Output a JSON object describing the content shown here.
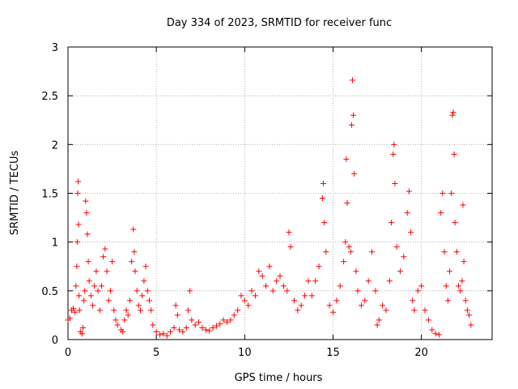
{
  "chart_data": {
    "type": "scatter",
    "title": "Day 334 of 2023, SRMTID for receiver func",
    "xlabel": "GPS time / hours",
    "ylabel": "SRMTID / TECUs",
    "xlim": [
      0,
      24
    ],
    "ylim": [
      0,
      3
    ],
    "xticks": [
      0,
      5,
      10,
      15,
      20
    ],
    "xtick_labels": [
      "0",
      "5",
      "10",
      "15",
      "20"
    ],
    "yticks": [
      0,
      0.5,
      1,
      1.5,
      2,
      2.5,
      3
    ],
    "ytick_labels": [
      "0",
      "0.5",
      "1",
      "1.5",
      "2",
      "2.5",
      "3"
    ],
    "grid": true,
    "marker": "+",
    "color": "#ff0000",
    "series": [
      {
        "name": "SRMTID",
        "points": [
          [
            0.0,
            0.2
          ],
          [
            0.1,
            0.22
          ],
          [
            0.2,
            0.3
          ],
          [
            0.3,
            0.32
          ],
          [
            0.4,
            0.28
          ],
          [
            0.45,
            0.55
          ],
          [
            0.5,
            0.75
          ],
          [
            0.52,
            1.0
          ],
          [
            0.55,
            1.5
          ],
          [
            0.58,
            1.62
          ],
          [
            0.6,
            1.18
          ],
          [
            0.62,
            0.45
          ],
          [
            0.65,
            0.3
          ],
          [
            0.7,
            0.08
          ],
          [
            0.8,
            0.06
          ],
          [
            0.85,
            0.12
          ],
          [
            0.9,
            0.4
          ],
          [
            0.95,
            0.5
          ],
          [
            1.0,
            1.42
          ],
          [
            1.05,
            1.3
          ],
          [
            1.1,
            1.08
          ],
          [
            1.15,
            0.8
          ],
          [
            1.2,
            0.6
          ],
          [
            1.3,
            0.45
          ],
          [
            1.4,
            0.35
          ],
          [
            1.5,
            0.55
          ],
          [
            1.6,
            0.7
          ],
          [
            1.7,
            0.5
          ],
          [
            1.8,
            0.3
          ],
          [
            1.9,
            0.55
          ],
          [
            2.0,
            0.85
          ],
          [
            2.1,
            0.93
          ],
          [
            2.2,
            0.7
          ],
          [
            2.3,
            0.4
          ],
          [
            2.4,
            0.5
          ],
          [
            2.5,
            0.8
          ],
          [
            2.6,
            0.3
          ],
          [
            2.7,
            0.2
          ],
          [
            2.8,
            0.15
          ],
          [
            3.0,
            0.1
          ],
          [
            3.1,
            0.08
          ],
          [
            3.2,
            0.2
          ],
          [
            3.3,
            0.3
          ],
          [
            3.4,
            0.25
          ],
          [
            3.5,
            0.4
          ],
          [
            3.6,
            0.8
          ],
          [
            3.7,
            1.13
          ],
          [
            3.75,
            0.9
          ],
          [
            3.8,
            0.7
          ],
          [
            3.9,
            0.5
          ],
          [
            4.0,
            0.35
          ],
          [
            4.1,
            0.3
          ],
          [
            4.2,
            0.45
          ],
          [
            4.3,
            0.6
          ],
          [
            4.4,
            0.75
          ],
          [
            4.5,
            0.5
          ],
          [
            4.6,
            0.4
          ],
          [
            4.7,
            0.3
          ],
          [
            4.8,
            0.15
          ],
          [
            5.0,
            0.08
          ],
          [
            5.2,
            0.05
          ],
          [
            5.4,
            0.06
          ],
          [
            5.6,
            0.04
          ],
          [
            5.8,
            0.08
          ],
          [
            6.0,
            0.12
          ],
          [
            6.1,
            0.35
          ],
          [
            6.2,
            0.25
          ],
          [
            6.3,
            0.1
          ],
          [
            6.5,
            0.08
          ],
          [
            6.7,
            0.12
          ],
          [
            6.8,
            0.3
          ],
          [
            6.9,
            0.5
          ],
          [
            7.0,
            0.2
          ],
          [
            7.2,
            0.15
          ],
          [
            7.4,
            0.18
          ],
          [
            7.6,
            0.12
          ],
          [
            7.8,
            0.1
          ],
          [
            8.0,
            0.09
          ],
          [
            8.2,
            0.12
          ],
          [
            8.4,
            0.14
          ],
          [
            8.6,
            0.16
          ],
          [
            8.8,
            0.2
          ],
          [
            9.0,
            0.18
          ],
          [
            9.2,
            0.2
          ],
          [
            9.4,
            0.25
          ],
          [
            9.6,
            0.3
          ],
          [
            9.8,
            0.45
          ],
          [
            10.0,
            0.4
          ],
          [
            10.2,
            0.35
          ],
          [
            10.4,
            0.5
          ],
          [
            10.6,
            0.45
          ],
          [
            10.8,
            0.7
          ],
          [
            11.0,
            0.65
          ],
          [
            11.2,
            0.55
          ],
          [
            11.4,
            0.75
          ],
          [
            11.6,
            0.5
          ],
          [
            11.8,
            0.6
          ],
          [
            12.0,
            0.65
          ],
          [
            12.2,
            0.55
          ],
          [
            12.4,
            0.5
          ],
          [
            12.5,
            1.1
          ],
          [
            12.6,
            0.95
          ],
          [
            12.8,
            0.4
          ],
          [
            13.0,
            0.3
          ],
          [
            13.2,
            0.35
          ],
          [
            13.4,
            0.45
          ],
          [
            13.6,
            0.6
          ],
          [
            13.8,
            0.45
          ],
          [
            14.0,
            0.6
          ],
          [
            14.2,
            0.75
          ],
          [
            14.4,
            1.45
          ],
          [
            14.45,
            1.6
          ],
          [
            14.5,
            1.2
          ],
          [
            14.6,
            0.9
          ],
          [
            14.8,
            0.35
          ],
          [
            15.0,
            0.28
          ],
          [
            15.2,
            0.4
          ],
          [
            15.4,
            0.55
          ],
          [
            15.6,
            0.8
          ],
          [
            15.7,
            1.0
          ],
          [
            15.75,
            1.85
          ],
          [
            15.8,
            1.4
          ],
          [
            15.9,
            0.95
          ],
          [
            16.0,
            0.9
          ],
          [
            16.05,
            2.2
          ],
          [
            16.1,
            2.66
          ],
          [
            16.15,
            2.3
          ],
          [
            16.2,
            1.7
          ],
          [
            16.3,
            0.7
          ],
          [
            16.4,
            0.5
          ],
          [
            16.6,
            0.35
          ],
          [
            16.8,
            0.4
          ],
          [
            17.0,
            0.6
          ],
          [
            17.2,
            0.9
          ],
          [
            17.4,
            0.5
          ],
          [
            17.5,
            0.15
          ],
          [
            17.6,
            0.2
          ],
          [
            17.8,
            0.35
          ],
          [
            18.0,
            0.3
          ],
          [
            18.2,
            0.6
          ],
          [
            18.3,
            1.2
          ],
          [
            18.4,
            1.9
          ],
          [
            18.45,
            2.0
          ],
          [
            18.5,
            1.6
          ],
          [
            18.6,
            0.95
          ],
          [
            18.8,
            0.7
          ],
          [
            19.0,
            0.85
          ],
          [
            19.2,
            1.3
          ],
          [
            19.3,
            1.52
          ],
          [
            19.4,
            1.1
          ],
          [
            19.5,
            0.4
          ],
          [
            19.6,
            0.3
          ],
          [
            19.8,
            0.5
          ],
          [
            20.0,
            0.55
          ],
          [
            20.2,
            0.3
          ],
          [
            20.4,
            0.2
          ],
          [
            20.6,
            0.1
          ],
          [
            20.8,
            0.06
          ],
          [
            21.0,
            0.05
          ],
          [
            21.1,
            1.3
          ],
          [
            21.2,
            1.5
          ],
          [
            21.3,
            0.9
          ],
          [
            21.4,
            0.55
          ],
          [
            21.5,
            0.4
          ],
          [
            21.6,
            0.7
          ],
          [
            21.7,
            1.5
          ],
          [
            21.75,
            2.3
          ],
          [
            21.8,
            2.33
          ],
          [
            21.85,
            1.9
          ],
          [
            21.9,
            1.2
          ],
          [
            22.0,
            0.9
          ],
          [
            22.1,
            0.55
          ],
          [
            22.2,
            0.5
          ],
          [
            22.3,
            0.6
          ],
          [
            22.35,
            1.38
          ],
          [
            22.4,
            0.8
          ],
          [
            22.5,
            0.4
          ],
          [
            22.6,
            0.3
          ],
          [
            22.7,
            0.25
          ],
          [
            22.8,
            0.15
          ]
        ]
      }
    ]
  }
}
